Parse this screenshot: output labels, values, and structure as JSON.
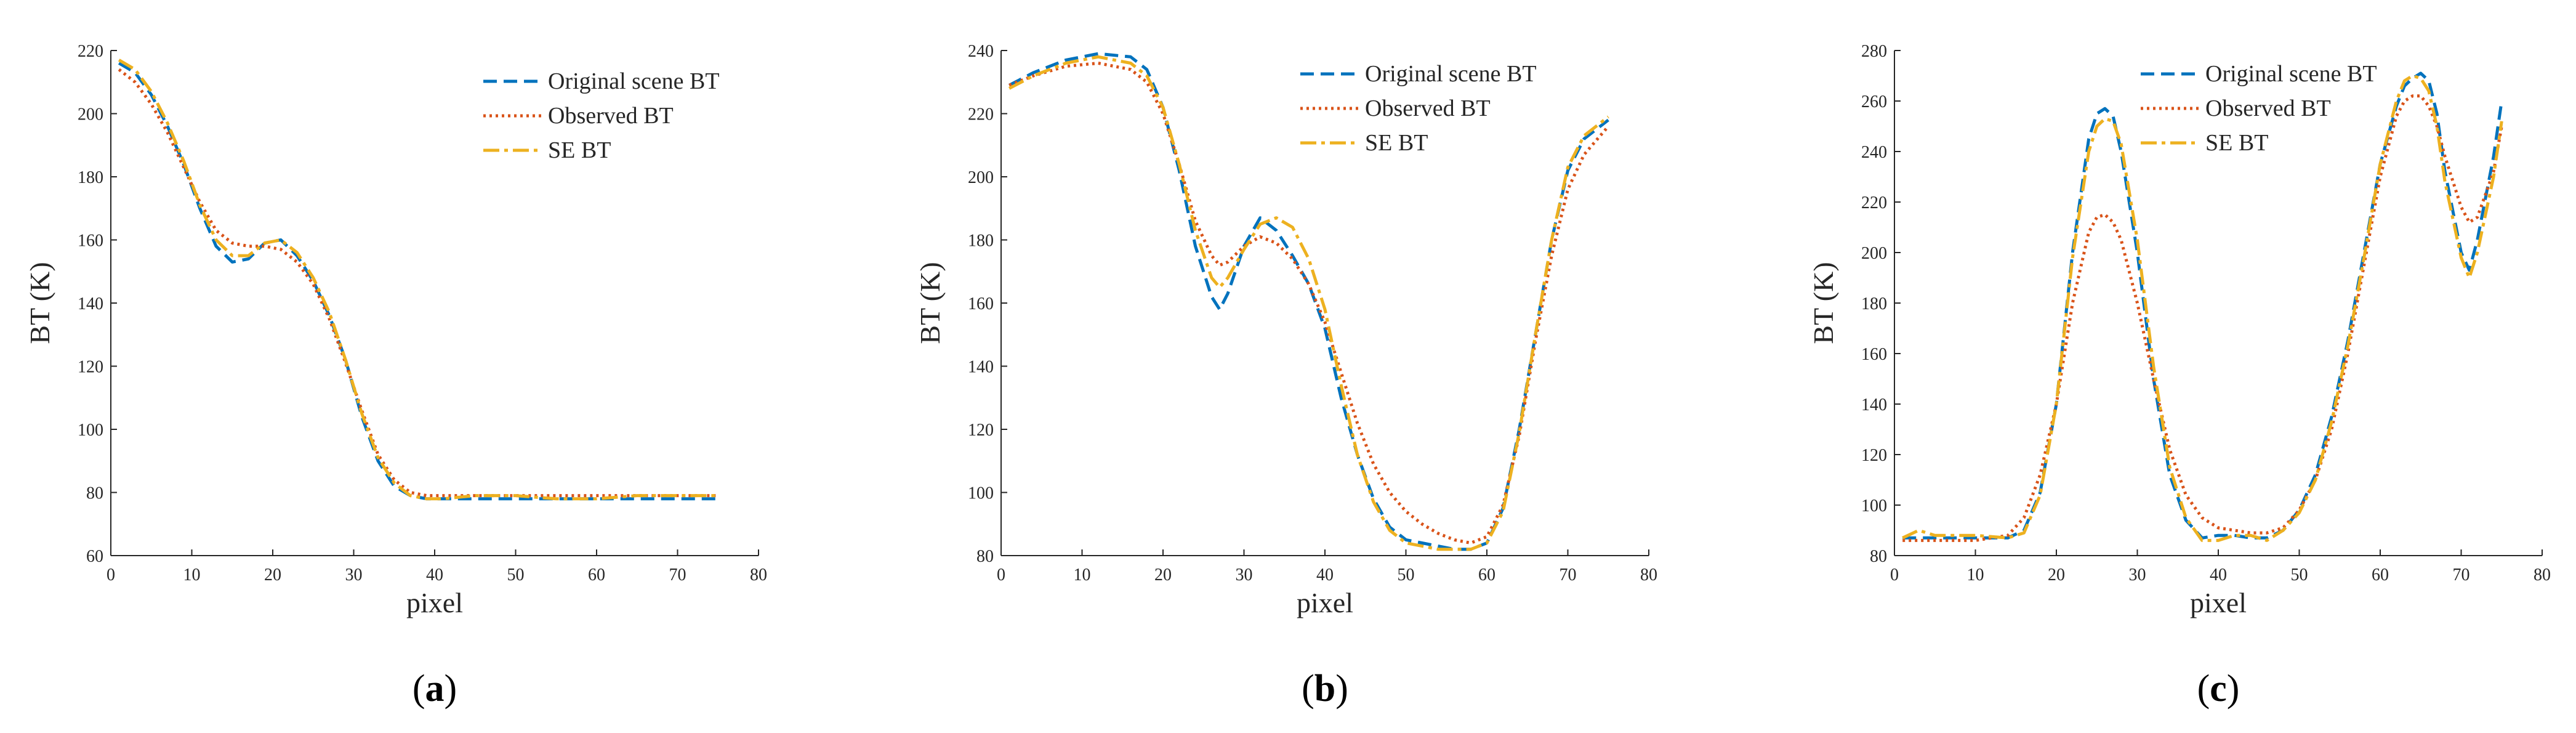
{
  "figure": {
    "series_styles": [
      {
        "name": "Original scene BT",
        "color": "#0072BD",
        "dash": "22 11",
        "width": 5
      },
      {
        "name": "Observed BT",
        "color": "#D95319",
        "dash": "4 6",
        "width": 5
      },
      {
        "name": "SE BT",
        "color": "#EDB120",
        "dash": "26 8 6 8",
        "width": 5
      }
    ]
  },
  "chart_data": [
    {
      "type": "line",
      "panel_letter": "a",
      "panel_open": "(",
      "panel_close": ")",
      "xlabel": "pixel",
      "ylabel": "BT (K)",
      "xlim": [
        0,
        80
      ],
      "ylim": [
        60,
        220
      ],
      "xticks": [
        0,
        10,
        20,
        30,
        40,
        50,
        60,
        70,
        80
      ],
      "yticks": [
        60,
        80,
        100,
        120,
        140,
        160,
        180,
        200,
        220
      ],
      "legend": [
        "Original scene BT",
        "Observed BT",
        "SE BT"
      ],
      "series": [
        {
          "name": "Original scene BT",
          "x": [
            1,
            3,
            5,
            7,
            9,
            11,
            13,
            15,
            17,
            19,
            21,
            23,
            25,
            27,
            29,
            31,
            33,
            35,
            37,
            39,
            41,
            45,
            50,
            55,
            60,
            65,
            70,
            75
          ],
          "y": [
            216,
            213,
            206,
            196,
            184,
            170,
            158,
            153,
            154,
            159,
            160,
            155,
            147,
            136,
            122,
            104,
            90,
            82,
            79,
            78,
            78,
            78,
            78,
            78,
            78,
            78,
            78,
            78
          ]
        },
        {
          "name": "Observed BT",
          "x": [
            1,
            3,
            5,
            7,
            9,
            11,
            13,
            15,
            17,
            19,
            21,
            23,
            25,
            27,
            29,
            31,
            33,
            35,
            37,
            39,
            41,
            45,
            50,
            55,
            60,
            65,
            70,
            75
          ],
          "y": [
            214,
            210,
            203,
            194,
            183,
            172,
            163,
            159,
            158,
            158,
            157,
            153,
            146,
            135,
            121,
            106,
            92,
            84,
            80,
            79,
            79,
            79,
            79,
            79,
            79,
            79,
            79,
            79
          ]
        },
        {
          "name": "SE BT",
          "x": [
            1,
            3,
            5,
            7,
            9,
            11,
            13,
            15,
            17,
            19,
            21,
            23,
            25,
            27,
            29,
            31,
            33,
            35,
            37,
            39,
            41,
            45,
            50,
            55,
            60,
            65,
            70,
            75
          ],
          "y": [
            217,
            214,
            207,
            197,
            185,
            171,
            160,
            155,
            155,
            159,
            160,
            156,
            148,
            137,
            122,
            105,
            91,
            83,
            79,
            78,
            78,
            79,
            79,
            78,
            78,
            79,
            79,
            79
          ]
        }
      ]
    },
    {
      "type": "line",
      "panel_letter": "b",
      "panel_open": "(",
      "panel_close": ")",
      "xlabel": "pixel",
      "ylabel": "BT (K)",
      "xlim": [
        0,
        80
      ],
      "ylim": [
        80,
        240
      ],
      "xticks": [
        0,
        10,
        20,
        30,
        40,
        50,
        60,
        70,
        80
      ],
      "yticks": [
        80,
        100,
        120,
        140,
        160,
        180,
        200,
        220,
        240
      ],
      "legend": [
        "Original scene BT",
        "Observed BT",
        "SE BT"
      ],
      "series": [
        {
          "name": "Original scene BT",
          "x": [
            1,
            4,
            8,
            12,
            16,
            18,
            20,
            22,
            24,
            26,
            27,
            28,
            30,
            32,
            34,
            36,
            38,
            40,
            42,
            44,
            46,
            48,
            50,
            52,
            54,
            56,
            58,
            60,
            62,
            64,
            66,
            68,
            70,
            72,
            75
          ],
          "y": [
            229,
            233,
            237,
            239,
            238,
            234,
            222,
            202,
            178,
            162,
            158,
            163,
            178,
            187,
            183,
            175,
            166,
            152,
            130,
            112,
            98,
            89,
            85,
            84,
            83,
            82,
            82,
            84,
            95,
            120,
            150,
            180,
            202,
            212,
            218
          ]
        },
        {
          "name": "Observed BT",
          "x": [
            1,
            4,
            8,
            12,
            16,
            18,
            20,
            22,
            24,
            26,
            27,
            28,
            30,
            32,
            34,
            36,
            38,
            40,
            42,
            44,
            46,
            48,
            50,
            52,
            54,
            56,
            58,
            60,
            62,
            64,
            66,
            68,
            70,
            72,
            75
          ],
          "y": [
            229,
            232,
            235,
            236,
            234,
            230,
            220,
            204,
            186,
            175,
            172,
            173,
            178,
            181,
            179,
            174,
            166,
            154,
            138,
            122,
            109,
            100,
            94,
            90,
            87,
            85,
            84,
            86,
            96,
            118,
            148,
            175,
            196,
            207,
            216
          ]
        },
        {
          "name": "SE BT",
          "x": [
            1,
            4,
            8,
            12,
            16,
            18,
            20,
            22,
            24,
            26,
            27,
            28,
            30,
            32,
            34,
            36,
            38,
            40,
            42,
            44,
            46,
            48,
            50,
            52,
            54,
            56,
            58,
            60,
            62,
            64,
            66,
            68,
            70,
            72,
            75
          ],
          "y": [
            228,
            232,
            236,
            238,
            236,
            232,
            222,
            204,
            183,
            168,
            165,
            168,
            177,
            185,
            187,
            184,
            174,
            158,
            134,
            112,
            97,
            88,
            84,
            83,
            82,
            82,
            82,
            84,
            94,
            119,
            150,
            180,
            203,
            213,
            219
          ]
        }
      ]
    },
    {
      "type": "line",
      "panel_letter": "c",
      "panel_open": "(",
      "panel_close": ")",
      "xlabel": "pixel",
      "ylabel": "BT (K)",
      "xlim": [
        0,
        80
      ],
      "ylim": [
        80,
        280
      ],
      "xticks": [
        0,
        10,
        20,
        30,
        40,
        50,
        60,
        70,
        80
      ],
      "yticks": [
        80,
        100,
        120,
        140,
        160,
        180,
        200,
        220,
        240,
        260,
        280
      ],
      "legend": [
        "Original scene BT",
        "Observed BT",
        "SE BT"
      ],
      "series": [
        {
          "name": "Original scene BT",
          "x": [
            1,
            5,
            10,
            14,
            16,
            18,
            20,
            22,
            24,
            25,
            26,
            27,
            28,
            30,
            32,
            34,
            36,
            38,
            40,
            42,
            44,
            46,
            48,
            50,
            52,
            54,
            56,
            58,
            60,
            62,
            63,
            64,
            65,
            66,
            67,
            68,
            70,
            71,
            72,
            74,
            75
          ],
          "y": [
            87,
            87,
            87,
            87,
            90,
            105,
            140,
            200,
            245,
            255,
            257,
            254,
            240,
            200,
            150,
            112,
            94,
            87,
            88,
            88,
            87,
            87,
            90,
            98,
            112,
            135,
            165,
            200,
            235,
            258,
            266,
            269,
            271,
            268,
            255,
            232,
            200,
            193,
            205,
            238,
            260
          ]
        },
        {
          "name": "Observed BT",
          "x": [
            1,
            5,
            10,
            14,
            16,
            18,
            20,
            22,
            24,
            25,
            26,
            27,
            28,
            30,
            32,
            34,
            36,
            38,
            40,
            42,
            44,
            46,
            48,
            50,
            52,
            54,
            56,
            58,
            60,
            62,
            63,
            64,
            65,
            66,
            67,
            68,
            70,
            71,
            72,
            74,
            75
          ],
          "y": [
            86,
            86,
            86,
            88,
            95,
            112,
            140,
            180,
            208,
            214,
            215,
            212,
            205,
            180,
            150,
            122,
            104,
            95,
            91,
            90,
            89,
            89,
            91,
            98,
            110,
            130,
            160,
            195,
            230,
            254,
            260,
            262,
            262,
            258,
            250,
            238,
            218,
            212,
            214,
            232,
            250
          ]
        },
        {
          "name": "SE BT",
          "x": [
            1,
            3,
            5,
            10,
            14,
            16,
            18,
            20,
            22,
            24,
            25,
            26,
            27,
            28,
            30,
            32,
            34,
            36,
            38,
            40,
            42,
            44,
            46,
            48,
            50,
            52,
            54,
            56,
            58,
            60,
            62,
            63,
            64,
            65,
            66,
            67,
            68,
            70,
            71,
            72,
            74,
            75
          ],
          "y": [
            87,
            90,
            88,
            88,
            87,
            89,
            104,
            140,
            198,
            240,
            250,
            253,
            252,
            243,
            205,
            155,
            115,
            95,
            86,
            86,
            88,
            88,
            86,
            90,
            97,
            110,
            133,
            163,
            198,
            235,
            260,
            268,
            270,
            269,
            264,
            250,
            228,
            198,
            190,
            200,
            230,
            252
          ]
        }
      ]
    }
  ]
}
